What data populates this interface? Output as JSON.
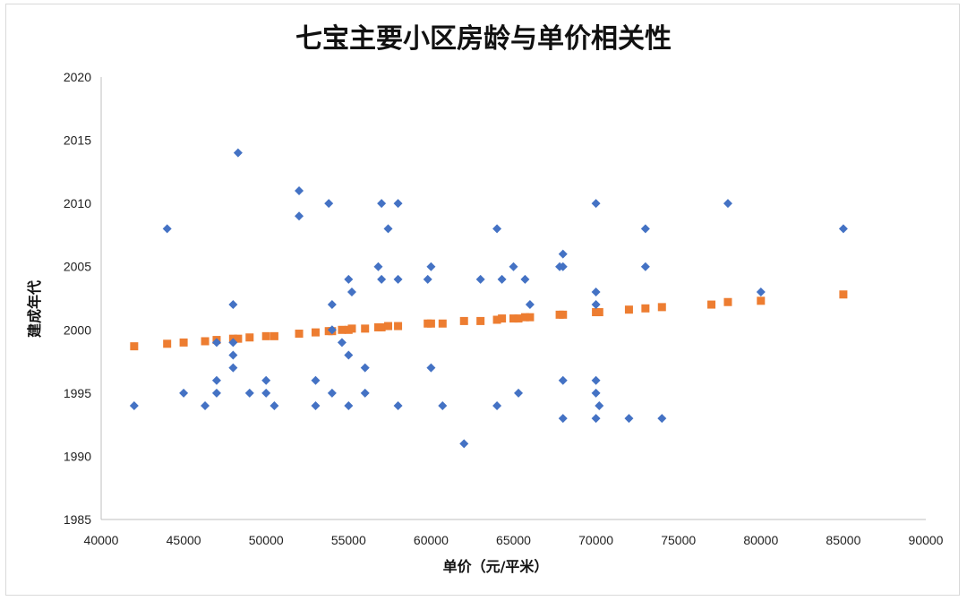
{
  "chart_data": {
    "type": "scatter",
    "title": "七宝主要小区房龄与单价相关性",
    "xlabel": "单价（元/平米）",
    "ylabel": "建成年代",
    "xlim": [
      40000,
      90000
    ],
    "ylim": [
      1985,
      2020
    ],
    "x_ticks": [
      "40000",
      "45000",
      "50000",
      "55000",
      "60000",
      "65000",
      "70000",
      "75000",
      "80000",
      "85000",
      "90000"
    ],
    "y_ticks": [
      "1985",
      "1990",
      "1995",
      "2000",
      "2005",
      "2010",
      "2015",
      "2020"
    ],
    "colors": {
      "actual": "#4472C4",
      "trend": "#ED7D31",
      "axis": "#bfbfbf"
    },
    "grid": false,
    "legend": "none",
    "series": [
      {
        "marker": "diamond",
        "points": [
          [
            42000,
            1994
          ],
          [
            44000,
            2008
          ],
          [
            45000,
            1995
          ],
          [
            46300,
            1994
          ],
          [
            47000,
            1996
          ],
          [
            47000,
            1995
          ],
          [
            47000,
            1999
          ],
          [
            48000,
            2002
          ],
          [
            48000,
            1999
          ],
          [
            48000,
            1998
          ],
          [
            48000,
            1997
          ],
          [
            48300,
            2014
          ],
          [
            49000,
            1995
          ],
          [
            50000,
            1996
          ],
          [
            50000,
            1995
          ],
          [
            50500,
            1994
          ],
          [
            52000,
            2011
          ],
          [
            52000,
            2009
          ],
          [
            53000,
            1996
          ],
          [
            53000,
            1994
          ],
          [
            53800,
            2010
          ],
          [
            54000,
            2002
          ],
          [
            54000,
            2000
          ],
          [
            54000,
            1995
          ],
          [
            54600,
            1999
          ],
          [
            55000,
            2004
          ],
          [
            55000,
            1998
          ],
          [
            55000,
            1994
          ],
          [
            55200,
            2003
          ],
          [
            56000,
            1997
          ],
          [
            56000,
            1995
          ],
          [
            56800,
            2005
          ],
          [
            57000,
            2010
          ],
          [
            57000,
            2004
          ],
          [
            57400,
            2008
          ],
          [
            58000,
            2010
          ],
          [
            58000,
            2004
          ],
          [
            58000,
            1994
          ],
          [
            59800,
            2004
          ],
          [
            60000,
            2005
          ],
          [
            60000,
            1997
          ],
          [
            60700,
            1994
          ],
          [
            62000,
            1991
          ],
          [
            63000,
            2004
          ],
          [
            64000,
            2008
          ],
          [
            64000,
            1994
          ],
          [
            64300,
            2004
          ],
          [
            65000,
            2005
          ],
          [
            65300,
            1995
          ],
          [
            65700,
            2004
          ],
          [
            66000,
            2002
          ],
          [
            67800,
            2005
          ],
          [
            68000,
            2006
          ],
          [
            68000,
            2005
          ],
          [
            68000,
            1996
          ],
          [
            68000,
            1993
          ],
          [
            70000,
            2010
          ],
          [
            70000,
            2003
          ],
          [
            70000,
            2002
          ],
          [
            70000,
            1996
          ],
          [
            70000,
            1995
          ],
          [
            70000,
            1993
          ],
          [
            70200,
            1994
          ],
          [
            72000,
            1993
          ],
          [
            73000,
            2008
          ],
          [
            73000,
            2005
          ],
          [
            74000,
            1993
          ],
          [
            78000,
            2010
          ],
          [
            80000,
            2003
          ],
          [
            85000,
            2008
          ]
        ]
      },
      {
        "marker": "square",
        "points": [
          [
            42000,
            1998.7
          ],
          [
            44000,
            1998.9
          ],
          [
            45000,
            1999.0
          ],
          [
            46300,
            1999.1
          ],
          [
            47000,
            1999.2
          ],
          [
            48000,
            1999.3
          ],
          [
            48300,
            1999.3
          ],
          [
            49000,
            1999.4
          ],
          [
            50000,
            1999.5
          ],
          [
            50500,
            1999.5
          ],
          [
            52000,
            1999.7
          ],
          [
            53000,
            1999.8
          ],
          [
            53800,
            1999.9
          ],
          [
            54000,
            1999.9
          ],
          [
            54600,
            2000.0
          ],
          [
            55000,
            2000.0
          ],
          [
            55200,
            2000.1
          ],
          [
            56000,
            2000.1
          ],
          [
            56800,
            2000.2
          ],
          [
            57000,
            2000.2
          ],
          [
            57400,
            2000.3
          ],
          [
            58000,
            2000.3
          ],
          [
            59800,
            2000.5
          ],
          [
            60000,
            2000.5
          ],
          [
            60700,
            2000.5
          ],
          [
            62000,
            2000.7
          ],
          [
            63000,
            2000.7
          ],
          [
            64000,
            2000.8
          ],
          [
            64300,
            2000.9
          ],
          [
            65000,
            2000.9
          ],
          [
            65300,
            2000.9
          ],
          [
            65700,
            2001.0
          ],
          [
            66000,
            2001.0
          ],
          [
            67800,
            2001.2
          ],
          [
            68000,
            2001.2
          ],
          [
            70000,
            2001.4
          ],
          [
            70200,
            2001.4
          ],
          [
            72000,
            2001.6
          ],
          [
            73000,
            2001.7
          ],
          [
            74000,
            2001.8
          ],
          [
            77000,
            2002.0
          ],
          [
            78000,
            2002.2
          ],
          [
            80000,
            2002.3
          ],
          [
            85000,
            2002.8
          ]
        ]
      }
    ]
  }
}
